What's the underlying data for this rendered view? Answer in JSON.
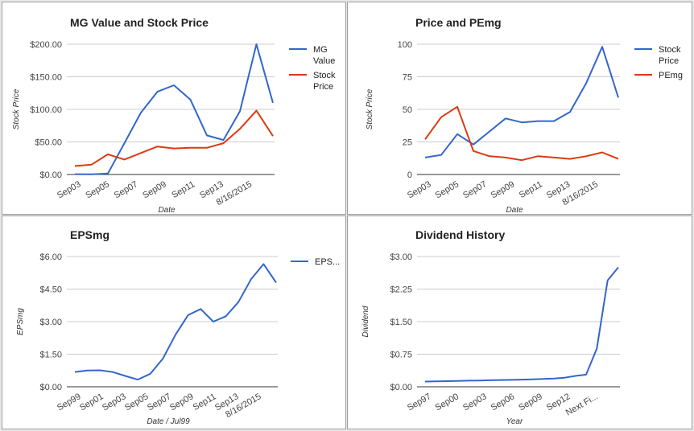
{
  "chart_data": [
    {
      "type": "line",
      "title": "MG Value and Stock Price",
      "xlabel": "Date",
      "ylabel": "Stock Price",
      "ylim": [
        0,
        200
      ],
      "yticks": [
        "$0.00",
        "$50.00",
        "$100.00",
        "$150.00",
        "$200.00"
      ],
      "xticks": [
        "Sep03",
        "Sep05",
        "Sep07",
        "Sep09",
        "Sep11",
        "Sep13",
        "8/16/2015"
      ],
      "legend_position": "right",
      "series": [
        {
          "name": "MG\nValue",
          "color": "#3366cc",
          "values": [
            0.5,
            0.3,
            1.5,
            48,
            95,
            127,
            137,
            115,
            60,
            53,
            97,
            200,
            110
          ]
        },
        {
          "name": "Stock\nPrice",
          "color": "#dc3912",
          "values": [
            13,
            15,
            31,
            23,
            33,
            43,
            40,
            41,
            41,
            48,
            70,
            98,
            59
          ]
        }
      ]
    },
    {
      "type": "line",
      "title": "Price and PEmg",
      "xlabel": "Date",
      "ylabel": "Stock Price",
      "ylim": [
        0,
        100
      ],
      "yticks": [
        "0",
        "25",
        "50",
        "75",
        "100"
      ],
      "xticks": [
        "Sep03",
        "Sep05",
        "Sep07",
        "Sep09",
        "Sep11",
        "Sep13",
        "8/16/2015"
      ],
      "legend_position": "right",
      "series": [
        {
          "name": "Stock\nPrice",
          "color": "#3366cc",
          "values": [
            13,
            15,
            31,
            23,
            33,
            43,
            40,
            41,
            41,
            48,
            70,
            98,
            59
          ]
        },
        {
          "name": "PEmg",
          "color": "#dc3912",
          "values": [
            27,
            44,
            52,
            18,
            14,
            13,
            11,
            14,
            13,
            12,
            14,
            17,
            12
          ]
        }
      ]
    },
    {
      "type": "line",
      "title": "EPSmg",
      "xlabel": "Date / Jul99",
      "ylabel": "EPSmg",
      "ylim": [
        0,
        6
      ],
      "yticks": [
        "$0.00",
        "$1.50",
        "$3.00",
        "$4.50",
        "$6.00"
      ],
      "xticks": [
        "Sep99",
        "Sep01",
        "Sep03",
        "Sep05",
        "Sep07",
        "Sep09",
        "Sep11",
        "Sep13",
        "8/16/2015"
      ],
      "legend_position": "right",
      "series": [
        {
          "name": "EPS...",
          "color": "#3366cc",
          "values": [
            0.68,
            0.75,
            0.76,
            0.68,
            0.5,
            0.33,
            0.6,
            1.3,
            2.4,
            3.3,
            3.58,
            3.0,
            3.25,
            3.9,
            4.95,
            5.65,
            4.8
          ]
        }
      ]
    },
    {
      "type": "line",
      "title": "Dividend History",
      "xlabel": "Year",
      "ylabel": "Dividend",
      "ylim": [
        0,
        3
      ],
      "yticks": [
        "$0.00",
        "$0.75",
        "$1.50",
        "$2.25",
        "$3.00"
      ],
      "xticks": [
        "Sep97",
        "Sep00",
        "Sep03",
        "Sep06",
        "Sep09",
        "Sep12",
        "Next Fi..."
      ],
      "legend_position": "none",
      "series": [
        {
          "name": "",
          "color": "#3366cc",
          "values": [
            0.12,
            0.125,
            0.13,
            0.135,
            0.14,
            0.145,
            0.15,
            0.155,
            0.16,
            0.165,
            0.17,
            0.18,
            0.19,
            0.21,
            0.25,
            0.28,
            0.88,
            2.45,
            2.75
          ]
        }
      ]
    }
  ]
}
